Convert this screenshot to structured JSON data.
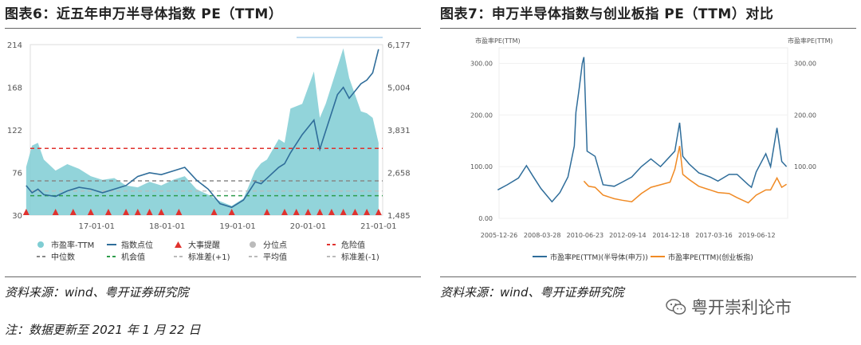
{
  "left": {
    "title": "图表6：近五年申万半导体指数 PE（TTM）",
    "source": "资料来源：wind、粤开证券研究院",
    "note": "注：数据更新至 2021 年 1 月 22 日"
  },
  "right": {
    "title": "图表7：申万半导体指数与创业板指 PE（TTM）对比",
    "source": "资料来源：wind、粤开证券研究院"
  },
  "watermark": {
    "text": "粤开崇利论市",
    "icon": "wechat-icon"
  },
  "colors": {
    "teal_fill": "#7fcdd3",
    "blue_line": "#2f6d9a",
    "red": "#e0322e",
    "green": "#2e9d4b",
    "gray": "#999999",
    "orange": "#f08a24",
    "blue2": "#2f6d9a"
  },
  "chart_data": [
    {
      "type": "area",
      "title": "",
      "x_ticks": [
        "17-01-01",
        "18-01-01",
        "19-01-01",
        "20-01-01",
        "21-01-01"
      ],
      "x_range": [
        "2016-01-22",
        "2021-01-22"
      ],
      "y_left": {
        "range": [
          30,
          214
        ],
        "ticks": [
          "30",
          "76",
          "122",
          "168",
          "214"
        ]
      },
      "y_right": {
        "range": [
          1485,
          6177
        ],
        "ticks": [
          "1,485",
          "2,658",
          "3,831",
          "5,004",
          "6,177"
        ]
      },
      "reference_lines": {
        "danger": 102,
        "median": 67,
        "average": 56,
        "opportunity": 51
      },
      "series": [
        {
          "name": "市盈率-TTM",
          "axis": "left",
          "kind": "area",
          "x": [
            "2016-01",
            "2016-02",
            "2016-03",
            "2016-04",
            "2016-06",
            "2016-08",
            "2016-10",
            "2016-12",
            "2017-02",
            "2017-04",
            "2017-06",
            "2017-08",
            "2017-10",
            "2017-12",
            "2018-02",
            "2018-04",
            "2018-06",
            "2018-08",
            "2018-10",
            "2018-12",
            "2019-02",
            "2019-04",
            "2019-05",
            "2019-06",
            "2019-08",
            "2019-09",
            "2019-10",
            "2019-12",
            "2020-02",
            "2020-03",
            "2020-04",
            "2020-06",
            "2020-07",
            "2020-08",
            "2020-09",
            "2020-10",
            "2020-11",
            "2020-12",
            "2021-01"
          ],
          "values": [
            82,
            105,
            108,
            90,
            78,
            85,
            80,
            72,
            68,
            70,
            62,
            60,
            66,
            62,
            68,
            72,
            58,
            52,
            45,
            40,
            48,
            78,
            86,
            90,
            112,
            108,
            145,
            150,
            185,
            135,
            150,
            190,
            210,
            178,
            160,
            142,
            140,
            135,
            108
          ]
        },
        {
          "name": "指数点位",
          "axis": "right",
          "kind": "line",
          "x": [
            "2016-01",
            "2016-02",
            "2016-03",
            "2016-04",
            "2016-06",
            "2016-08",
            "2016-10",
            "2016-12",
            "2017-02",
            "2017-04",
            "2017-06",
            "2017-08",
            "2017-10",
            "2017-12",
            "2018-02",
            "2018-04",
            "2018-06",
            "2018-08",
            "2018-10",
            "2018-12",
            "2019-02",
            "2019-04",
            "2019-05",
            "2019-06",
            "2019-08",
            "2019-09",
            "2019-10",
            "2019-12",
            "2020-02",
            "2020-03",
            "2020-04",
            "2020-06",
            "2020-07",
            "2020-08",
            "2020-09",
            "2020-10",
            "2020-11",
            "2020-12",
            "2021-01"
          ],
          "values": [
            2300,
            2100,
            2200,
            2050,
            2000,
            2150,
            2250,
            2200,
            2100,
            2200,
            2300,
            2550,
            2650,
            2600,
            2700,
            2800,
            2450,
            2200,
            1800,
            1700,
            1900,
            2400,
            2350,
            2500,
            2800,
            2900,
            3200,
            3700,
            4100,
            3300,
            3800,
            4800,
            5000,
            4700,
            4900,
            5100,
            5200,
            5400,
            6050
          ]
        },
        {
          "name": "大事提醒",
          "kind": "markers",
          "x": [
            "2016-01",
            "2016-06",
            "2016-09",
            "2016-12",
            "2017-03",
            "2017-06",
            "2017-08",
            "2017-10",
            "2017-12",
            "2018-03",
            "2018-09",
            "2018-12",
            "2019-06",
            "2019-09",
            "2019-11",
            "2020-01",
            "2020-03",
            "2020-05",
            "2020-07",
            "2020-09",
            "2020-11",
            "2021-01"
          ]
        },
        {
          "name": "危险值",
          "kind": "hline"
        },
        {
          "name": "中位数",
          "kind": "hline"
        },
        {
          "name": "机会值",
          "kind": "hline"
        }
      ],
      "legend": [
        "市盈率-TTM",
        "指数点位",
        "大事提醒",
        "分位点",
        "危险值",
        "中位数",
        "机会值",
        "标准差(+1)",
        "平均值",
        "标准差(-1)"
      ],
      "legend_placement": "bottom"
    },
    {
      "type": "line",
      "title": "",
      "x_ticks": [
        "2005-12-26",
        "2008-03-28",
        "2010-06-23",
        "2012-09-14",
        "2014-12-18",
        "2017-03-16",
        "2019-06-12"
      ],
      "x_range": [
        "2005-12-26",
        "2021-01-22"
      ],
      "y_left": {
        "label": "市盈率PE(TTM)",
        "range": [
          0,
          330
        ],
        "ticks": [
          "0.00",
          "100.00",
          "200.00",
          "300.00"
        ]
      },
      "y_right": {
        "label": "市盈率PE(TTM)",
        "range": [
          0,
          330
        ],
        "ticks": [
          "100.00",
          "200.00",
          "300.00"
        ]
      },
      "series": [
        {
          "name": "市盈率PE(TTM)(半导体(申万))",
          "x": [
            "2005-12",
            "2006-06",
            "2007-01",
            "2007-06",
            "2007-10",
            "2008-03",
            "2008-10",
            "2009-03",
            "2009-08",
            "2009-12",
            "2010-01",
            "2010-03",
            "2010-05",
            "2010-06",
            "2010-08",
            "2011-01",
            "2011-06",
            "2012-01",
            "2012-06",
            "2012-12",
            "2013-06",
            "2013-12",
            "2014-06",
            "2014-12",
            "2015-03",
            "2015-06",
            "2015-08",
            "2015-12",
            "2016-06",
            "2017-01",
            "2017-06",
            "2018-01",
            "2018-06",
            "2019-01",
            "2019-03",
            "2019-06",
            "2019-12",
            "2020-03",
            "2020-07",
            "2020-10",
            "2021-01"
          ],
          "values": [
            55,
            65,
            78,
            102,
            82,
            58,
            32,
            50,
            80,
            140,
            205,
            250,
            300,
            312,
            130,
            120,
            65,
            62,
            70,
            80,
            100,
            115,
            100,
            120,
            130,
            185,
            120,
            105,
            88,
            80,
            72,
            85,
            85,
            65,
            60,
            90,
            125,
            100,
            175,
            110,
            100
          ]
        },
        {
          "name": "市盈率PE(TTM)(创业板指)",
          "x": [
            "2010-06",
            "2010-09",
            "2011-01",
            "2011-06",
            "2012-01",
            "2012-06",
            "2012-12",
            "2013-06",
            "2013-12",
            "2014-06",
            "2014-12",
            "2015-03",
            "2015-06",
            "2015-08",
            "2015-12",
            "2016-06",
            "2017-01",
            "2017-06",
            "2018-01",
            "2018-06",
            "2019-01",
            "2019-06",
            "2019-12",
            "2020-03",
            "2020-07",
            "2020-10",
            "2021-01"
          ],
          "values": [
            72,
            62,
            60,
            45,
            38,
            35,
            32,
            48,
            60,
            65,
            70,
            95,
            140,
            85,
            75,
            62,
            55,
            50,
            48,
            40,
            30,
            45,
            55,
            55,
            78,
            60,
            66
          ]
        }
      ],
      "legend": [
        "市盈率PE(TTM)(半导体(申万))",
        "市盈率PE(TTM)(创业板指)"
      ],
      "legend_placement": "bottom"
    }
  ]
}
